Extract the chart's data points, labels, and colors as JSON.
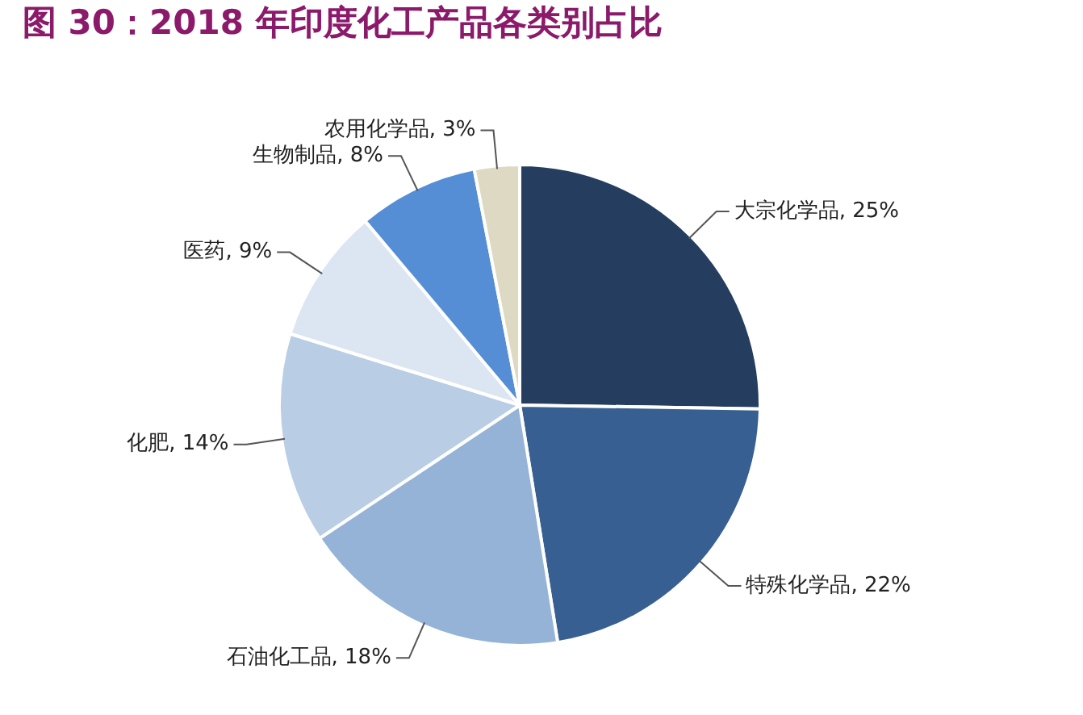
{
  "chart_data": {
    "type": "pie",
    "title": "图 30：2018 年印度化工产品各类别占比",
    "categories": [
      "大宗化学品",
      "特殊化学品",
      "石油化工品",
      "化肥",
      "医药",
      "生物制品",
      "农用化学品"
    ],
    "values": [
      25,
      22,
      18,
      14,
      9,
      8,
      3
    ],
    "value_labels": [
      "25%",
      "22%",
      "18%",
      "14%",
      "9%",
      "8%",
      "3%"
    ],
    "colors": [
      "#253d5f",
      "#375f92",
      "#95b3d7",
      "#b9cde5",
      "#dce6f2",
      "#558ed5",
      "#ddd9c3"
    ],
    "legend": false
  }
}
